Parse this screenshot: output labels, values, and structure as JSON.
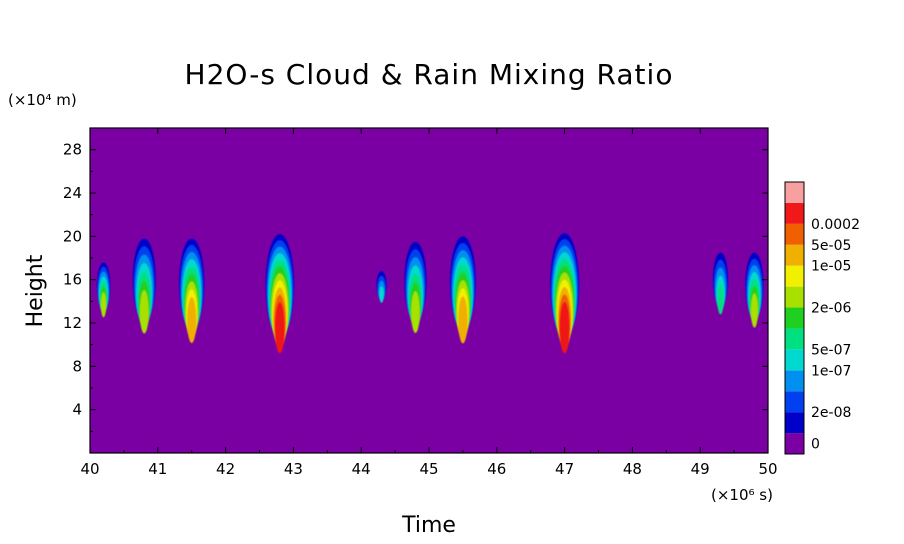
{
  "chart_data": {
    "type": "heatmap",
    "title": "H2O-s Cloud & Rain Mixing Ratio",
    "xlabel": "Time",
    "ylabel": "Height",
    "x_scale_label": "(×10⁶ s)",
    "y_scale_label": "(×10⁴ m)",
    "xlim": [
      40,
      50
    ],
    "ylim": [
      0,
      30
    ],
    "x_ticks": [
      "40",
      "41",
      "42",
      "43",
      "44",
      "45",
      "46",
      "47",
      "48",
      "49",
      "50"
    ],
    "y_ticks": [
      "4",
      "8",
      "12",
      "16",
      "20",
      "24",
      "28"
    ],
    "colorbar": {
      "labels": [
        "0",
        "2e-08",
        "1e-07",
        "5e-07",
        "2e-06",
        "1e-05",
        "5e-05",
        "0.0002"
      ],
      "colors": [
        "#7b00a4",
        "#0000c8",
        "#0040f0",
        "#0090f0",
        "#00d8d0",
        "#00e080",
        "#20d020",
        "#a8e000",
        "#f0f000",
        "#f0b000",
        "#f06000",
        "#f01818",
        "#f8a0a0"
      ],
      "background": "#7b00a4"
    },
    "features": [
      {
        "time": 40.2,
        "height_min": 13.2,
        "height_max": 17.6,
        "peak_level": "2e-06"
      },
      {
        "time": 40.8,
        "height_min": 12.2,
        "height_max": 19.8,
        "peak_level": "2e-06"
      },
      {
        "time": 41.5,
        "height_min": 11.5,
        "height_max": 19.8,
        "peak_level": "1e-05"
      },
      {
        "time": 42.8,
        "height_min": 10.8,
        "height_max": 20.2,
        "peak_level": "0.0002"
      },
      {
        "time": 44.3,
        "height_min": 14.2,
        "height_max": 16.8,
        "peak_level": "1e-07"
      },
      {
        "time": 44.8,
        "height_min": 12.2,
        "height_max": 19.5,
        "peak_level": "2e-06"
      },
      {
        "time": 45.5,
        "height_min": 11.5,
        "height_max": 20.0,
        "peak_level": "1e-05"
      },
      {
        "time": 47.0,
        "height_min": 10.8,
        "height_max": 20.3,
        "peak_level": "0.0002"
      },
      {
        "time": 49.3,
        "height_min": 13.5,
        "height_max": 18.5,
        "peak_level": "5e-07"
      },
      {
        "time": 49.8,
        "height_min": 12.5,
        "height_max": 18.5,
        "peak_level": "2e-06"
      }
    ]
  }
}
